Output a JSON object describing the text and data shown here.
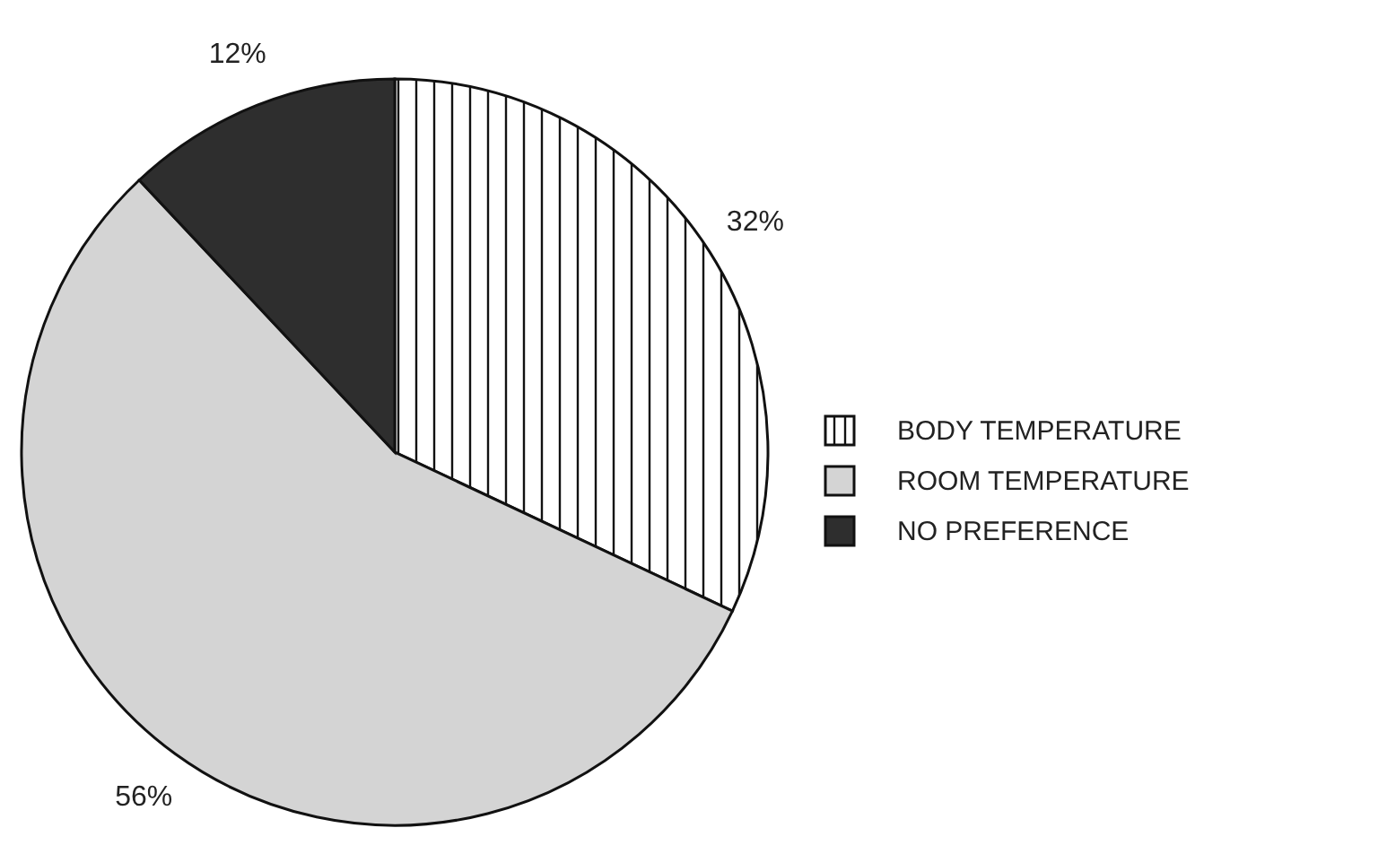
{
  "chart_data": {
    "type": "pie",
    "categories": [
      "BODY TEMPERATURE",
      "ROOM TEMPERATURE",
      "NO PREFERENCE"
    ],
    "values": [
      32,
      56,
      12
    ],
    "value_labels": [
      "32%",
      "56%",
      "12%"
    ],
    "colors": [
      "#ffffff",
      "#d4d4d4",
      "#2e2e2e"
    ],
    "legend": "right"
  }
}
